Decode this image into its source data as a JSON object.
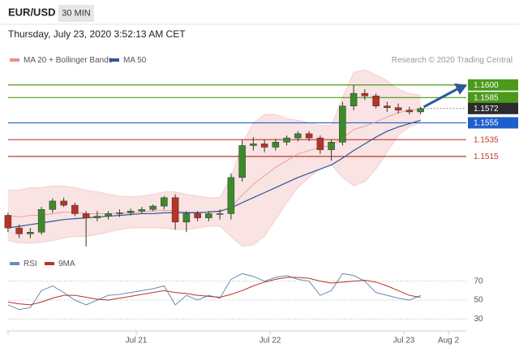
{
  "header": {
    "symbol": "EUR/USD",
    "interval": "30 MIN",
    "datetime": "Thursday, July 23, 2020 3:52:13 AM CET"
  },
  "chart_data": [
    {
      "type": "candlestick",
      "annotation": "Research © 2020 Trading Central",
      "up_color": "#3d8a2a",
      "down_color": "#b83226",
      "ylim": [
        1.1405,
        1.162
      ],
      "open": [
        1.1445,
        1.143,
        1.1423,
        1.1425,
        1.1452,
        1.1462,
        1.1457,
        1.1447,
        1.1442,
        1.1444,
        1.1447,
        1.1448,
        1.145,
        1.1452,
        1.1456,
        1.1466,
        1.1437,
        1.1447,
        1.1442,
        1.1447,
        1.1447,
        1.149,
        1.1528,
        1.153,
        1.1526,
        1.1532,
        1.1537,
        1.1542,
        1.1537,
        1.1523,
        1.1532,
        1.1575,
        1.159,
        1.1587,
        1.1575,
        1.1573,
        1.157,
        1.1568,
        null,
        null,
        null,
        null
      ],
      "high": [
        1.1448,
        1.1434,
        1.143,
        1.1455,
        1.1465,
        1.1466,
        1.146,
        1.145,
        1.145,
        1.145,
        1.1452,
        1.1453,
        1.1455,
        1.1458,
        1.1468,
        1.147,
        1.145,
        1.145,
        1.145,
        1.1452,
        1.1495,
        1.1535,
        1.1538,
        1.1535,
        1.1536,
        1.154,
        1.1545,
        1.1545,
        1.154,
        1.1535,
        1.158,
        1.16,
        1.1595,
        1.159,
        1.158,
        1.1578,
        1.1574,
        1.1574,
        null,
        null,
        null,
        null
      ],
      "low": [
        1.1425,
        1.1418,
        1.1418,
        1.1422,
        1.1448,
        1.1455,
        1.1444,
        1.1408,
        1.1438,
        1.144,
        1.1443,
        1.1445,
        1.1447,
        1.145,
        1.1452,
        1.1428,
        1.1425,
        1.1438,
        1.1438,
        1.144,
        1.144,
        1.1485,
        1.1522,
        1.152,
        1.1522,
        1.1528,
        1.1533,
        1.1533,
        1.1518,
        1.151,
        1.1528,
        1.157,
        1.1582,
        1.1572,
        1.1568,
        1.1566,
        1.1565,
        1.1565,
        null,
        null,
        null,
        null
      ],
      "close": [
        1.143,
        1.1423,
        1.1425,
        1.1452,
        1.1462,
        1.1457,
        1.1447,
        1.1442,
        1.1444,
        1.1447,
        1.1448,
        1.145,
        1.1452,
        1.1456,
        1.1466,
        1.1437,
        1.1447,
        1.1442,
        1.1447,
        1.1447,
        1.149,
        1.1528,
        1.153,
        1.1526,
        1.1532,
        1.1537,
        1.1542,
        1.1537,
        1.1523,
        1.1532,
        1.1575,
        1.159,
        1.1587,
        1.1575,
        1.1573,
        1.157,
        1.1568,
        1.1572,
        null,
        null,
        null,
        null
      ],
      "series": [
        {
          "name": "MA 20 + Bollinger Bands",
          "color": "#e98f8f",
          "values": [
            1.1445,
            1.1443,
            1.1445,
            1.1445,
            1.1447,
            1.1449,
            1.1449,
            1.1447,
            1.1447,
            1.1447,
            1.1448,
            1.1448,
            1.1449,
            1.145,
            1.1451,
            1.145,
            1.1449,
            1.1449,
            1.1449,
            1.1449,
            1.1455,
            1.1469,
            1.1482,
            1.1492,
            1.1502,
            1.151,
            1.1518,
            1.1522,
            1.1526,
            1.1528,
            1.1537,
            1.1547,
            1.1551,
            1.1556,
            1.1562,
            1.1567,
            1.157,
            1.1571,
            null,
            null,
            null,
            null
          ],
          "upper": [
            1.1475,
            1.1475,
            1.1478,
            1.1478,
            1.148,
            1.148,
            1.1478,
            1.1475,
            1.1473,
            1.147,
            1.1468,
            1.1467,
            1.1468,
            1.147,
            1.1473,
            1.1473,
            1.147,
            1.1468,
            1.1466,
            1.1466,
            1.149,
            1.153,
            1.1555,
            1.1565,
            1.1565,
            1.156,
            1.1558,
            1.1555,
            1.1552,
            1.1552,
            1.1585,
            1.1615,
            1.1618,
            1.1612,
            1.1605,
            1.1595,
            1.159,
            1.1588,
            null,
            null,
            null,
            null
          ],
          "lower": [
            1.1415,
            1.1412,
            1.1412,
            1.1413,
            1.1415,
            1.1418,
            1.142,
            1.142,
            1.1422,
            1.1425,
            1.1428,
            1.143,
            1.143,
            1.143,
            1.143,
            1.1428,
            1.1428,
            1.143,
            1.1432,
            1.1432,
            1.142,
            1.1408,
            1.141,
            1.142,
            1.144,
            1.146,
            1.1478,
            1.149,
            1.15,
            1.1505,
            1.149,
            1.148,
            1.1485,
            1.15,
            1.152,
            1.154,
            1.155,
            1.1555,
            null,
            null,
            null,
            null
          ]
        },
        {
          "name": "MA 50",
          "color": "#2c5a96",
          "values": [
            1.143,
            1.1432,
            1.1434,
            1.1436,
            1.1438,
            1.144,
            1.1441,
            1.1442,
            1.1443,
            1.1444,
            1.1445,
            1.1446,
            1.1447,
            1.1447,
            1.1448,
            1.1448,
            1.1448,
            1.1448,
            1.1449,
            1.145,
            1.1454,
            1.146,
            1.1466,
            1.1472,
            1.1478,
            1.1484,
            1.149,
            1.1495,
            1.15,
            1.1505,
            1.1513,
            1.1522,
            1.153,
            1.1538,
            1.1545,
            1.155,
            1.1554,
            1.1558,
            null,
            null,
            null,
            null
          ]
        }
      ],
      "levels": [
        {
          "value": 1.16,
          "label": "1.1600",
          "color": "#4c9a1c",
          "boxed": true,
          "dashed": false
        },
        {
          "value": 1.1585,
          "label": "1.1585",
          "color": "#4c9a1c",
          "boxed": true,
          "dashed": false
        },
        {
          "value": 1.1572,
          "label": "1.1572",
          "color": "#2b2b2b",
          "boxed": true,
          "dashed": true
        },
        {
          "value": 1.1555,
          "label": "1.1555",
          "color": "#1f5fcc",
          "boxed": true,
          "dashed": false
        },
        {
          "value": 1.1535,
          "label": "1.1535",
          "color": "#c0392b",
          "boxed": false,
          "dashed": false
        },
        {
          "value": 1.1515,
          "label": "1.1515",
          "color": "#c0392b",
          "boxed": false,
          "dashed": false
        }
      ]
    },
    {
      "type": "line",
      "categories": [
        null,
        null,
        null,
        null,
        null,
        null,
        null,
        null,
        null,
        null,
        null,
        null,
        "Jul 21",
        null,
        null,
        null,
        null,
        null,
        null,
        null,
        null,
        null,
        null,
        null,
        "Jul 22",
        null,
        null,
        null,
        null,
        null,
        null,
        null,
        null,
        null,
        null,
        null,
        "Jul 23",
        null,
        null,
        null,
        "Aug 2",
        null
      ],
      "ylim": [
        20,
        80
      ],
      "yticks": [
        30,
        50,
        70
      ],
      "grid": true,
      "series": [
        {
          "name": "RSI",
          "color": "#6a8bb5",
          "values": [
            45,
            40,
            42,
            60,
            65,
            58,
            50,
            45,
            50,
            55,
            56,
            58,
            60,
            62,
            65,
            45,
            55,
            50,
            55,
            52,
            72,
            78,
            75,
            70,
            74,
            76,
            72,
            70,
            55,
            60,
            78,
            76,
            70,
            58,
            55,
            52,
            50,
            55,
            null,
            null,
            null,
            null
          ]
        },
        {
          "name": "9MA",
          "color": "#b83226",
          "values": [
            48,
            46,
            45,
            48,
            52,
            55,
            55,
            53,
            51,
            50,
            52,
            54,
            56,
            58,
            60,
            58,
            57,
            55,
            54,
            53,
            56,
            60,
            65,
            69,
            72,
            74,
            74,
            73,
            70,
            68,
            69,
            70,
            71,
            69,
            65,
            60,
            55,
            53,
            null,
            null,
            null,
            null
          ]
        }
      ]
    }
  ]
}
